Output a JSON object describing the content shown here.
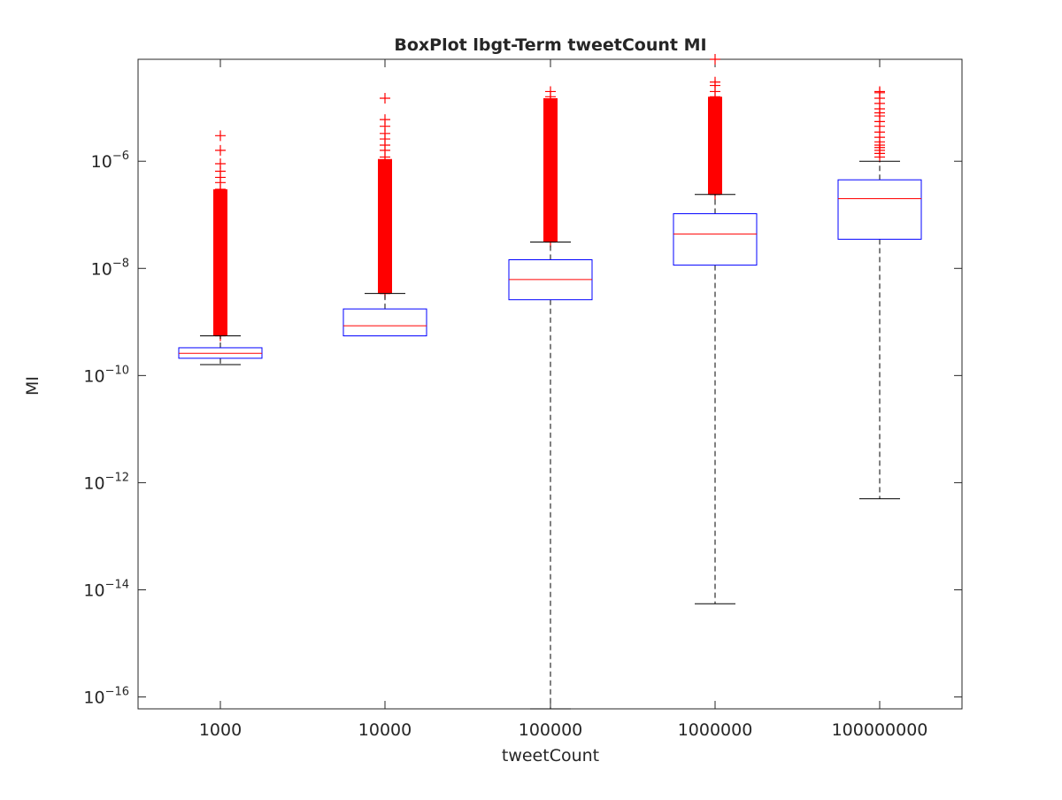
{
  "chart_data": {
    "type": "boxplot",
    "title": "BoxPlot lbgt-Term tweetCount MI",
    "xlabel": "tweetCount",
    "ylabel": "MI",
    "yscale": "log",
    "ylim": [
      6e-17,
      8e-05
    ],
    "ytick_exponents": [
      -16,
      -14,
      -12,
      -10,
      -8,
      -6
    ],
    "ytick_base": "10",
    "categories": [
      "1000",
      "10000",
      "100000",
      "1000000",
      "100000000"
    ],
    "boxes": [
      {
        "category": "1000",
        "whisker_low": 1.6e-10,
        "q1": 2.1e-10,
        "median": 2.6e-10,
        "q3": 3.3e-10,
        "whisker_high": 5.5e-10,
        "outlier_band": [
          5.5e-10,
          3e-07
        ],
        "outliers": [
          5.5e-10,
          6e-10,
          7e-10,
          8e-10,
          9e-10,
          1.1e-09,
          1.3e-09,
          2.3e-09,
          3e-09,
          4e-09,
          5.5e-09,
          8e-09,
          1.2e-08,
          2e-08,
          3e-08,
          5e-08,
          8e-08,
          1.3e-07,
          1.8e-07,
          2.5e-07,
          3e-07,
          4e-07,
          5e-07,
          6.5e-07,
          9e-07,
          1.6e-06,
          3e-06
        ]
      },
      {
        "category": "10000",
        "whisker_low": 5.5e-10,
        "q1": 5.5e-10,
        "median": 8.5e-10,
        "q3": 1.75e-09,
        "whisker_high": 3.4e-09,
        "outlier_band": [
          3.4e-09,
          1.1e-06
        ],
        "outliers": [
          3.4e-09,
          4e-09,
          6e-09,
          1e-08,
          2e-08,
          5e-08,
          1e-07,
          2e-07,
          4e-07,
          6e-07,
          8e-07,
          1e-06,
          1.2e-06,
          1.6e-06,
          2e-06,
          2.6e-06,
          3.3e-06,
          4.5e-06,
          6e-06,
          1.5e-05
        ]
      },
      {
        "category": "100000",
        "whisker_low": 6e-17,
        "q1": 2.6e-09,
        "median": 6.2e-09,
        "q3": 1.45e-08,
        "whisker_high": 3.1e-08,
        "outlier_band": [
          3.1e-08,
          1.5e-05
        ],
        "outliers": [
          3.1e-08,
          4e-08,
          6e-08,
          1e-07,
          2e-07,
          5e-07,
          1e-06,
          2e-06,
          4e-06,
          6e-06,
          8e-06,
          1e-05,
          1.3e-05,
          1.6e-05,
          2e-05
        ]
      },
      {
        "category": "1000000",
        "whisker_low": 5.5e-15,
        "q1": 1.15e-08,
        "median": 4.4e-08,
        "q3": 1.05e-07,
        "whisker_high": 2.4e-07,
        "outlier_band": [
          2.4e-07,
          1.6e-05
        ],
        "outliers": [
          2.4e-07,
          3e-07,
          5e-07,
          1e-06,
          2e-06,
          3e-06,
          5e-06,
          8e-06,
          1.2e-05,
          1.6e-05,
          2e-05,
          2.6e-05,
          3e-05,
          8e-05
        ]
      },
      {
        "category": "100000000",
        "whisker_low": 5e-13,
        "q1": 3.5e-08,
        "median": 2e-07,
        "q3": 4.5e-07,
        "whisker_high": 1e-06,
        "outlier_band": null,
        "outliers": [
          1.2e-06,
          1.4e-06,
          1.6e-06,
          1.8e-06,
          2e-06,
          2.3e-06,
          2.8e-06,
          3.5e-06,
          4.5e-06,
          5.5e-06,
          7e-06,
          8e-06,
          9.5e-06,
          1.2e-05,
          1.5e-05,
          1.9e-05,
          2e-05
        ]
      }
    ],
    "colors": {
      "box": "#0000ff",
      "median": "#ff0000",
      "whisker": "#000000",
      "outlier": "#ff0000",
      "axes": "#262626"
    }
  }
}
